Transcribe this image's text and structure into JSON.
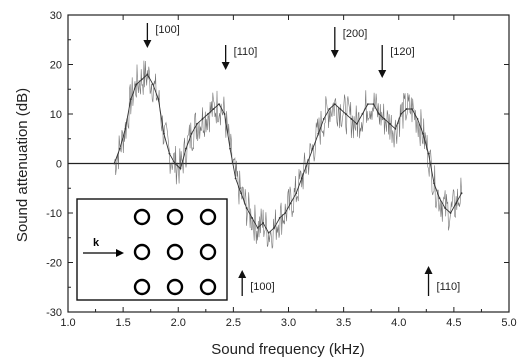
{
  "chart_data": {
    "type": "line",
    "xlabel": "Sound frequency (kHz)",
    "ylabel": "Sound attenuation (dB)",
    "xlim": [
      1.0,
      5.0
    ],
    "ylim": [
      -30,
      30
    ],
    "xticks": [
      "1.0",
      "1.5",
      "2.0",
      "2.5",
      "3.0",
      "3.5",
      "4.0",
      "4.5",
      "5.0"
    ],
    "yticks": [
      "30",
      "20",
      "10",
      "0",
      "-10",
      "-20",
      "-30"
    ],
    "zero_line": true,
    "grid": false,
    "series": [
      {
        "x": [
          1.42,
          1.47,
          1.52,
          1.57,
          1.62,
          1.67,
          1.72,
          1.77,
          1.82,
          1.87,
          1.92,
          1.97,
          2.02,
          2.07,
          2.12,
          2.17,
          2.22,
          2.27,
          2.32,
          2.37,
          2.42,
          2.47,
          2.52,
          2.57,
          2.62,
          2.67,
          2.72,
          2.77,
          2.82,
          2.87,
          2.92,
          2.97,
          3.02,
          3.07,
          3.12,
          3.17,
          3.22,
          3.27,
          3.32,
          3.37,
          3.42,
          3.47,
          3.52,
          3.57,
          3.62,
          3.67,
          3.72,
          3.77,
          3.82,
          3.87,
          3.92,
          3.97,
          4.02,
          4.07,
          4.12,
          4.17,
          4.22,
          4.27,
          4.32,
          4.37,
          4.42,
          4.47,
          4.52,
          4.57
        ],
        "values": [
          0,
          3,
          7,
          13,
          16,
          17,
          18,
          16,
          13,
          6,
          2,
          0,
          -1,
          3,
          6,
          8,
          9,
          10,
          11,
          12,
          10,
          3,
          -3,
          -6,
          -9,
          -11,
          -13,
          -12,
          -14,
          -13,
          -11,
          -10,
          -8,
          -6,
          -3,
          0,
          3,
          6,
          9,
          11,
          12,
          11,
          10,
          9,
          8,
          10,
          12,
          12,
          10,
          9,
          8,
          7,
          10,
          11,
          11,
          9,
          6,
          2,
          -4,
          -7,
          -9,
          -10,
          -8,
          -6
        ]
      }
    ],
    "annotations_top": [
      {
        "label": "[100]",
        "x": 1.72
      },
      {
        "label": "[110]",
        "x": 2.43
      },
      {
        "label": "[200]",
        "x": 3.42
      },
      {
        "label": "[120]",
        "x": 3.85
      }
    ],
    "annotations_bottom": [
      {
        "label": "[100]",
        "x": 2.58
      },
      {
        "label": "[110]",
        "x": 4.27
      }
    ],
    "inset": {
      "label": "k"
    }
  }
}
